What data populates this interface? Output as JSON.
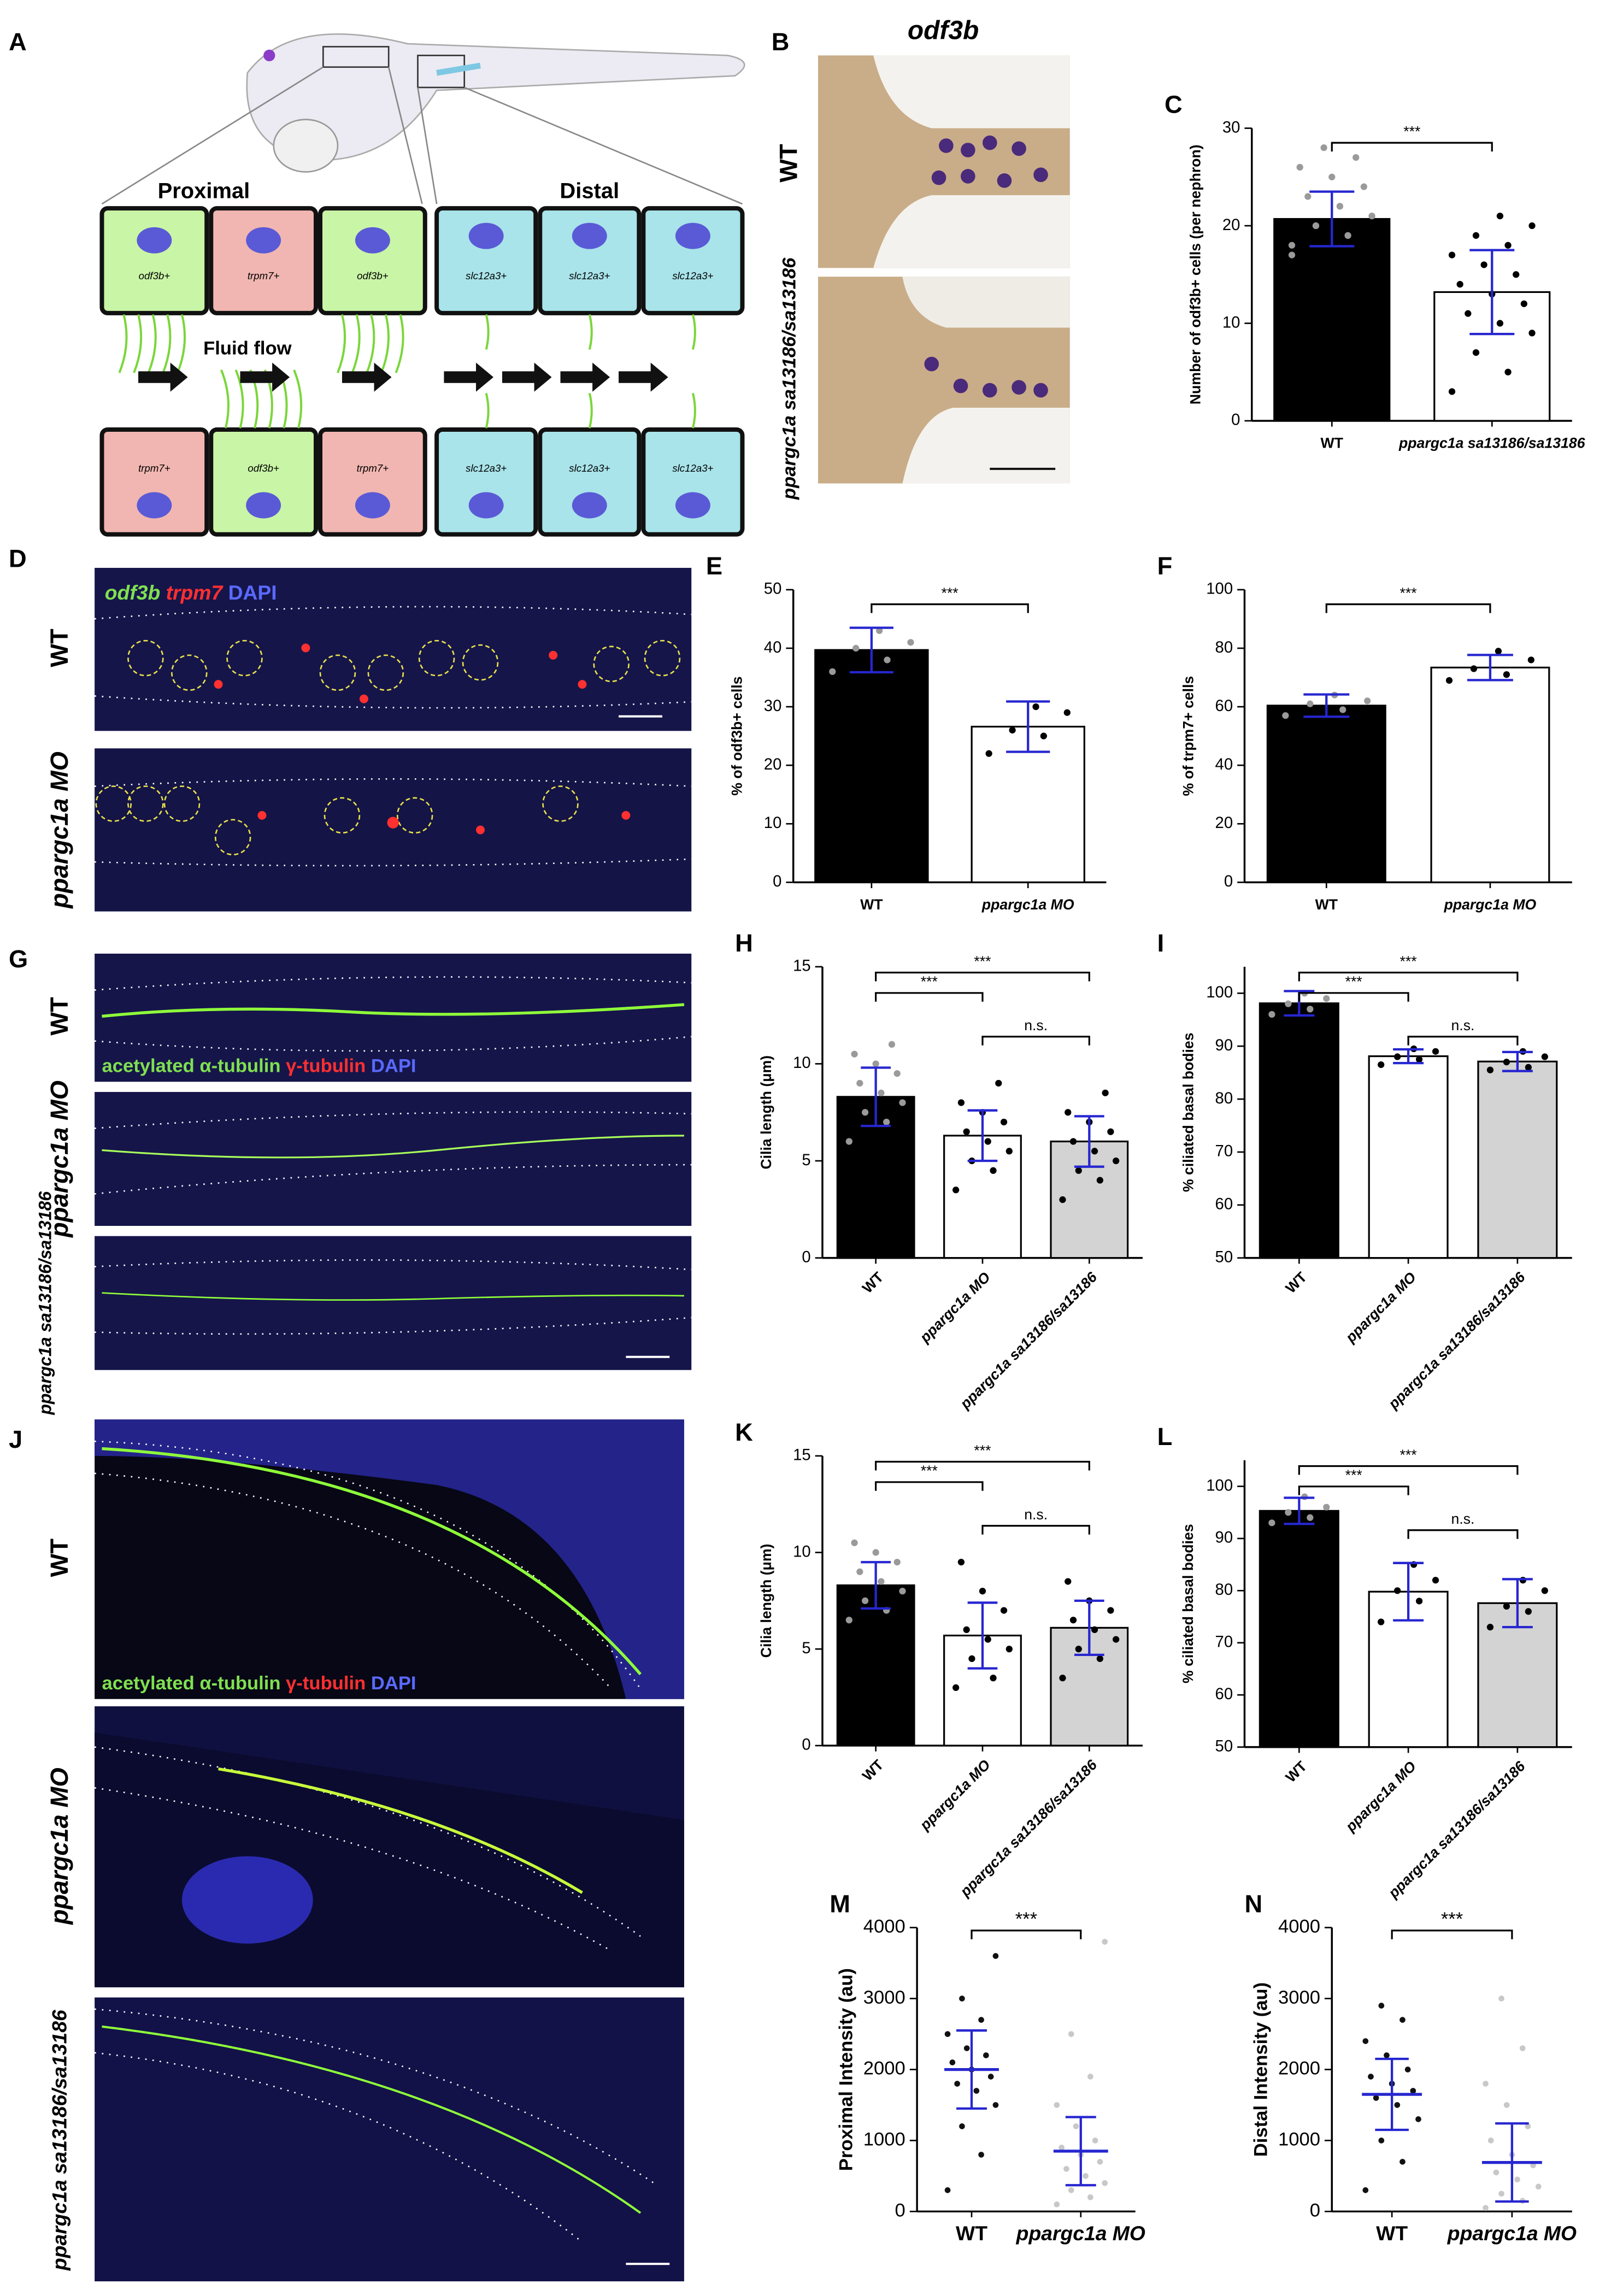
{
  "figure": {
    "letters": [
      "A",
      "B",
      "D",
      "G",
      "J"
    ],
    "A": {
      "proximal": "Proximal",
      "distal": "Distal",
      "fluid_flow": "Fluid flow",
      "top_cells": [
        "odf3b+",
        "trpm7+",
        "odf3b+",
        "slc12a3+",
        "slc12a3+",
        "slc12a3+"
      ],
      "bottom_cells": [
        "trpm7+",
        "odf3b+",
        "trpm7+",
        "slc12a3+",
        "slc12a3+",
        "slc12a3+"
      ]
    },
    "B": {
      "title": "odf3b",
      "rows": [
        "WT",
        "ppargc1a sa13186/sa13186"
      ]
    },
    "D": {
      "stain": [
        "odf3b",
        "trpm7",
        "DAPI"
      ],
      "rows": [
        "WT",
        "ppargc1a MO"
      ]
    },
    "G": {
      "stain": [
        "acetylated α-tubulin",
        "γ-tubulin",
        "DAPI"
      ],
      "rows": [
        "WT",
        "ppargc1a MO",
        "ppargc1a sa13186/sa13186"
      ]
    },
    "J": {
      "stain": [
        "acetylated α-tubulin",
        "γ-tubulin",
        "DAPI"
      ],
      "rows": [
        "WT",
        "ppargc1a MO",
        "ppargc1a sa13186/sa13186"
      ]
    }
  },
  "chart_data": [
    {
      "type": "bar",
      "panel": "C",
      "y_label": "Number of odf3b+ cells (per nephron)",
      "categories": [
        "WT",
        "ppargc1a sa13186/sa13186"
      ],
      "values": [
        20.7,
        13.2
      ],
      "errors": [
        2.8,
        4.3
      ],
      "colors": [
        "#000000",
        "#ffffff"
      ],
      "point_colors": [
        "#9a9a9a",
        "#000000"
      ],
      "points": [
        [
          18,
          19,
          20,
          21,
          22,
          23,
          24,
          25,
          26,
          27,
          28,
          17,
          19,
          20,
          21,
          22
        ],
        [
          3,
          5,
          7,
          9,
          10,
          11,
          12,
          13,
          14,
          15,
          16,
          17,
          18,
          19,
          20,
          21
        ]
      ],
      "significance": [
        {
          "from": "WT",
          "to": "ppargc1a sa13186/sa13186",
          "label": "***"
        }
      ],
      "ylim": [
        0,
        30
      ],
      "yticks": [
        0,
        10,
        20,
        30
      ]
    },
    {
      "type": "bar",
      "panel": "E",
      "y_label": "% of odf3b+ cells",
      "categories": [
        "WT",
        "ppargc1a MO"
      ],
      "values": [
        39.7,
        26.6
      ],
      "errors": [
        3.8,
        4.3
      ],
      "colors": [
        "#000000",
        "#ffffff"
      ],
      "point_colors": [
        "#9a9a9a",
        "#000000"
      ],
      "points": [
        [
          36,
          38,
          40,
          41,
          43
        ],
        [
          22,
          25,
          26,
          29,
          30
        ]
      ],
      "significance": [
        {
          "from": "WT",
          "to": "ppargc1a MO",
          "label": "***"
        }
      ],
      "ylim": [
        0,
        50
      ],
      "yticks": [
        0,
        10,
        20,
        30,
        40,
        50
      ]
    },
    {
      "type": "bar",
      "panel": "F",
      "y_label": "% of trpm7+ cells",
      "categories": [
        "WT",
        "ppargc1a MO"
      ],
      "values": [
        60.4,
        73.4
      ],
      "errors": [
        3.8,
        4.3
      ],
      "colors": [
        "#000000",
        "#ffffff"
      ],
      "point_colors": [
        "#9a9a9a",
        "#000000"
      ],
      "points": [
        [
          57,
          59,
          61,
          62,
          64
        ],
        [
          69,
          71,
          73,
          76,
          79
        ]
      ],
      "significance": [
        {
          "from": "WT",
          "to": "ppargc1a MO",
          "label": "***"
        }
      ],
      "ylim": [
        0,
        100
      ],
      "yticks": [
        0,
        20,
        40,
        60,
        80,
        100
      ]
    },
    {
      "type": "bar",
      "panel": "H",
      "y_label": "Cilia length (μm)",
      "rotate_labels": true,
      "categories": [
        "WT",
        "ppargc1a MO",
        "ppargc1a sa13186/sa13186"
      ],
      "values": [
        8.3,
        6.3,
        6.0
      ],
      "errors": [
        1.5,
        1.3,
        1.3
      ],
      "colors": [
        "#000000",
        "#ffffff",
        "#d3d3d3"
      ],
      "point_colors": [
        "#9a9a9a",
        "#000000",
        "#000000"
      ],
      "points": [
        [
          6,
          7,
          7.5,
          8,
          8.5,
          9,
          9.5,
          10,
          10.5,
          11
        ],
        [
          3.5,
          4.5,
          5,
          5.5,
          6,
          6.5,
          7,
          7.5,
          8,
          9
        ],
        [
          3,
          4,
          4.5,
          5,
          5.5,
          6,
          6.5,
          7,
          7.5,
          8.5
        ]
      ],
      "significance": [
        {
          "from": "WT",
          "to": "ppargc1a MO",
          "label": "***"
        },
        {
          "from": "WT",
          "to": "ppargc1a sa13186/sa13186",
          "label": "***"
        },
        {
          "from": "ppargc1a MO",
          "to": "ppargc1a sa13186/sa13186",
          "label": "n.s."
        }
      ],
      "ylim": [
        0,
        15
      ],
      "yticks": [
        0,
        5,
        10,
        15
      ]
    },
    {
      "type": "bar",
      "panel": "I",
      "y_label": "% ciliated basal bodies",
      "rotate_labels": true,
      "categories": [
        "WT",
        "ppargc1a MO",
        "ppargc1a sa13186/sa13186"
      ],
      "values": [
        98.1,
        88.1,
        87.1
      ],
      "errors": [
        2.3,
        1.3,
        1.8
      ],
      "colors": [
        "#000000",
        "#ffffff",
        "#d3d3d3"
      ],
      "point_colors": [
        "#9a9a9a",
        "#000000",
        "#000000"
      ],
      "points": [
        [
          96,
          97,
          98,
          99,
          100
        ],
        [
          86.5,
          87.5,
          88,
          89,
          89.5
        ],
        [
          85.5,
          86,
          87,
          88,
          89
        ]
      ],
      "significance": [
        {
          "from": "WT",
          "to": "ppargc1a MO",
          "label": "***"
        },
        {
          "from": "WT",
          "to": "ppargc1a sa13186/sa13186",
          "label": "***"
        },
        {
          "from": "ppargc1a MO",
          "to": "ppargc1a sa13186/sa13186",
          "label": "n.s."
        }
      ],
      "ylim": [
        50,
        105
      ],
      "yticks": [
        50,
        60,
        70,
        80,
        90,
        100
      ]
    },
    {
      "type": "bar",
      "panel": "K",
      "y_label": "Cilia length (μm)",
      "rotate_labels": true,
      "categories": [
        "WT",
        "ppargc1a MO",
        "ppargc1a sa13186/sa13186"
      ],
      "values": [
        8.3,
        5.7,
        6.1
      ],
      "errors": [
        1.2,
        1.7,
        1.4
      ],
      "colors": [
        "#000000",
        "#ffffff",
        "#d3d3d3"
      ],
      "point_colors": [
        "#9a9a9a",
        "#000000",
        "#000000"
      ],
      "points": [
        [
          6.5,
          7,
          7.5,
          8,
          8.5,
          9,
          9.5,
          10,
          10.5
        ],
        [
          3,
          3.5,
          4.5,
          5,
          5.5,
          6,
          7,
          8,
          9.5
        ],
        [
          3.5,
          4.5,
          5,
          5.5,
          6,
          6.5,
          7,
          7.5,
          8.5
        ]
      ],
      "significance": [
        {
          "from": "WT",
          "to": "ppargc1a MO",
          "label": "***"
        },
        {
          "from": "WT",
          "to": "ppargc1a sa13186/sa13186",
          "label": "***"
        },
        {
          "from": "ppargc1a MO",
          "to": "ppargc1a sa13186/sa13186",
          "label": "n.s."
        }
      ],
      "ylim": [
        0,
        15
      ],
      "yticks": [
        0,
        5,
        10,
        15
      ]
    },
    {
      "type": "bar",
      "panel": "L",
      "y_label": "% ciliated basal bodies",
      "rotate_labels": true,
      "categories": [
        "WT",
        "ppargc1a MO",
        "ppargc1a sa13186/sa13186"
      ],
      "values": [
        95.3,
        79.8,
        77.6
      ],
      "errors": [
        2.5,
        5.5,
        4.6
      ],
      "colors": [
        "#000000",
        "#ffffff",
        "#d3d3d3"
      ],
      "point_colors": [
        "#9a9a9a",
        "#000000",
        "#000000"
      ],
      "points": [
        [
          93,
          94,
          95,
          96,
          98
        ],
        [
          74,
          78,
          80,
          82,
          85
        ],
        [
          73,
          76,
          77,
          80,
          82
        ]
      ],
      "significance": [
        {
          "from": "WT",
          "to": "ppargc1a MO",
          "label": "***"
        },
        {
          "from": "WT",
          "to": "ppargc1a sa13186/sa13186",
          "label": "***"
        },
        {
          "from": "ppargc1a MO",
          "to": "ppargc1a sa13186/sa13186",
          "label": "n.s."
        }
      ],
      "ylim": [
        50,
        105
      ],
      "yticks": [
        50,
        60,
        70,
        80,
        90,
        100
      ]
    },
    {
      "type": "dotplot",
      "panel": "M",
      "y_label": "Proximal Intensity (au)",
      "categories": [
        "WT",
        "ppargc1a MO"
      ],
      "values": [
        2000,
        850
      ],
      "errors": [
        550,
        480
      ],
      "point_colors": [
        "#111111",
        "#c8c8c8"
      ],
      "points": [
        [
          300,
          800,
          1200,
          1500,
          1700,
          1800,
          1900,
          2000,
          2100,
          2200,
          2300,
          2500,
          2700,
          3000,
          3600
        ],
        [
          100,
          200,
          300,
          400,
          500,
          600,
          700,
          800,
          900,
          1000,
          1200,
          1500,
          1900,
          2500,
          3800
        ]
      ],
      "significance": [
        {
          "from": "WT",
          "to": "ppargc1a MO",
          "label": "***"
        }
      ],
      "ylim": [
        0,
        4000
      ],
      "yticks": [
        0,
        1000,
        2000,
        3000,
        4000
      ]
    },
    {
      "type": "dotplot",
      "panel": "N",
      "y_label": "Distal Intensity (au)",
      "categories": [
        "WT",
        "ppargc1a MO"
      ],
      "values": [
        1650,
        690
      ],
      "errors": [
        500,
        550
      ],
      "point_colors": [
        "#111111",
        "#c8c8c8"
      ],
      "points": [
        [
          300,
          700,
          1000,
          1300,
          1500,
          1600,
          1700,
          1800,
          1900,
          2000,
          2200,
          2400,
          2700,
          2900
        ],
        [
          50,
          150,
          250,
          350,
          450,
          550,
          650,
          800,
          1000,
          1200,
          1500,
          1800,
          2300,
          3000
        ]
      ],
      "significance": [
        {
          "from": "WT",
          "to": "ppargc1a MO",
          "label": "***"
        }
      ],
      "ylim": [
        0,
        4000
      ],
      "yticks": [
        0,
        1000,
        2000,
        3000,
        4000
      ]
    }
  ]
}
